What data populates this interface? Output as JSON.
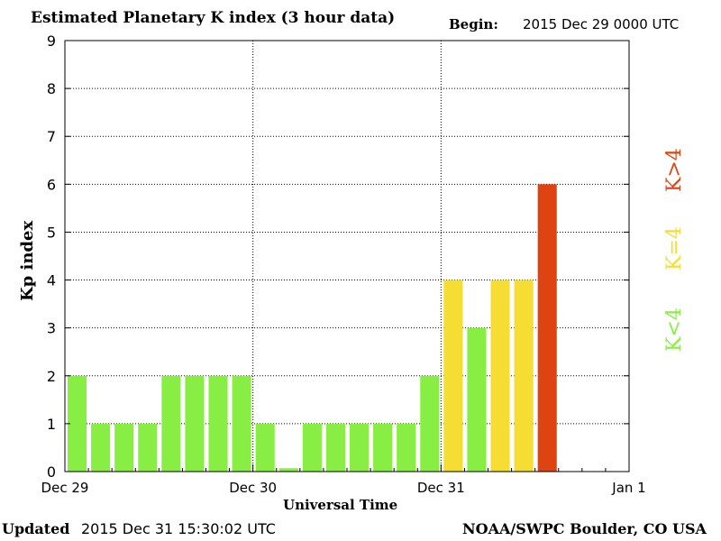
{
  "header": {
    "title": "Estimated Planetary K index (3 hour data)",
    "begin_label": "Begin:",
    "begin_value": "2015 Dec 29 0000 UTC"
  },
  "footer": {
    "updated_label": "Updated",
    "updated_value": "2015 Dec 31 15:30:02 UTC",
    "credit": "NOAA/SWPC Boulder, CO USA"
  },
  "legend": {
    "greater": "K>4",
    "equal": "K=4",
    "less": "K<4"
  },
  "colors": {
    "less": "#88ee44",
    "equal": "#f5dd33",
    "greater": "#dd4411"
  },
  "chart_data": {
    "type": "bar",
    "title": "Estimated Planetary K index (3 hour data)",
    "xlabel": "Universal Time",
    "ylabel": "Kp index",
    "ylim": [
      0,
      9
    ],
    "yticks": [
      "0",
      "1",
      "2",
      "3",
      "4",
      "5",
      "6",
      "7",
      "8",
      "9"
    ],
    "xticks": [
      "Dec 29",
      "Dec 30",
      "Dec 31",
      "Jan 1"
    ],
    "grid": true,
    "values": [
      2,
      1,
      1,
      1,
      2,
      2,
      2,
      2,
      1,
      0.07,
      1,
      1,
      1,
      1,
      1,
      2,
      4,
      3,
      4,
      4,
      6
    ]
  }
}
